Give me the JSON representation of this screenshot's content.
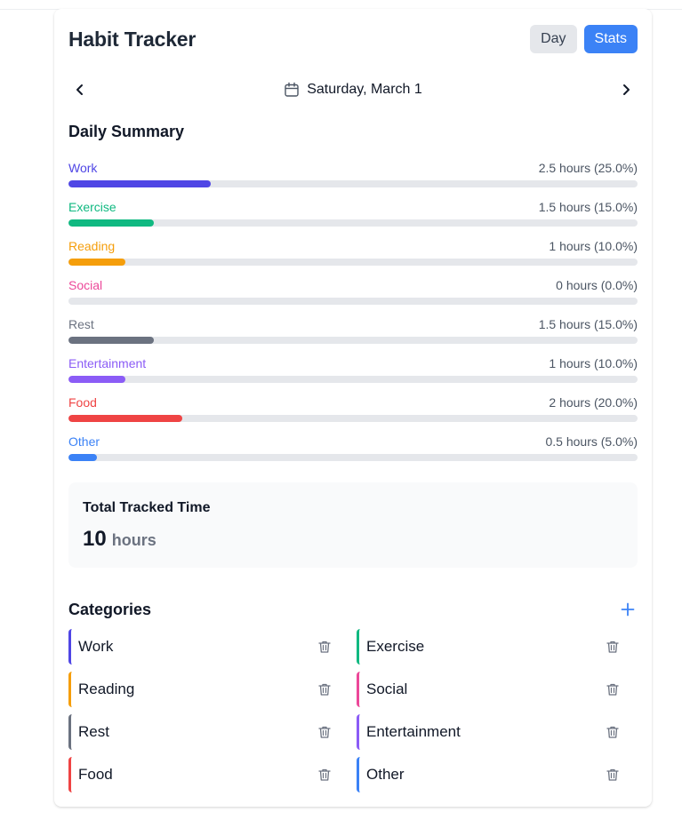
{
  "header": {
    "title": "Habit Tracker",
    "day_label": "Day",
    "stats_label": "Stats"
  },
  "date_nav": {
    "date": "Saturday, March 1",
    "prev_icon": "chevron-left-icon",
    "next_icon": "chevron-right-icon",
    "calendar_icon": "calendar-icon"
  },
  "summary": {
    "title": "Daily Summary",
    "items": [
      {
        "name": "Work",
        "value": "2.5 hours (25.0%)",
        "percent": 25.0,
        "color": "#4f46e5"
      },
      {
        "name": "Exercise",
        "value": "1.5 hours (15.0%)",
        "percent": 15.0,
        "color": "#10b981"
      },
      {
        "name": "Reading",
        "value": "1 hours (10.0%)",
        "percent": 10.0,
        "color": "#f59e0b"
      },
      {
        "name": "Social",
        "value": "0 hours (0.0%)",
        "percent": 0.0,
        "color": "#ec4899"
      },
      {
        "name": "Rest",
        "value": "1.5 hours (15.0%)",
        "percent": 15.0,
        "color": "#6b7280"
      },
      {
        "name": "Entertainment",
        "value": "1 hours (10.0%)",
        "percent": 10.0,
        "color": "#8b5cf6"
      },
      {
        "name": "Food",
        "value": "2 hours (20.0%)",
        "percent": 20.0,
        "color": "#ef4444"
      },
      {
        "name": "Other",
        "value": "0.5 hours (5.0%)",
        "percent": 5.0,
        "color": "#3b82f6"
      }
    ]
  },
  "total": {
    "title": "Total Tracked Time",
    "value": "10",
    "unit": "hours"
  },
  "categories": {
    "title": "Categories",
    "add_icon": "plus-icon",
    "delete_icon": "trash-icon",
    "items": [
      {
        "name": "Work",
        "color": "#4f46e5"
      },
      {
        "name": "Exercise",
        "color": "#10b981"
      },
      {
        "name": "Reading",
        "color": "#f59e0b"
      },
      {
        "name": "Social",
        "color": "#ec4899"
      },
      {
        "name": "Rest",
        "color": "#6b7280"
      },
      {
        "name": "Entertainment",
        "color": "#8b5cf6"
      },
      {
        "name": "Food",
        "color": "#ef4444"
      },
      {
        "name": "Other",
        "color": "#3b82f6"
      }
    ]
  },
  "colors": {
    "accent": "#3b82f6",
    "track": "#e5e7eb"
  }
}
